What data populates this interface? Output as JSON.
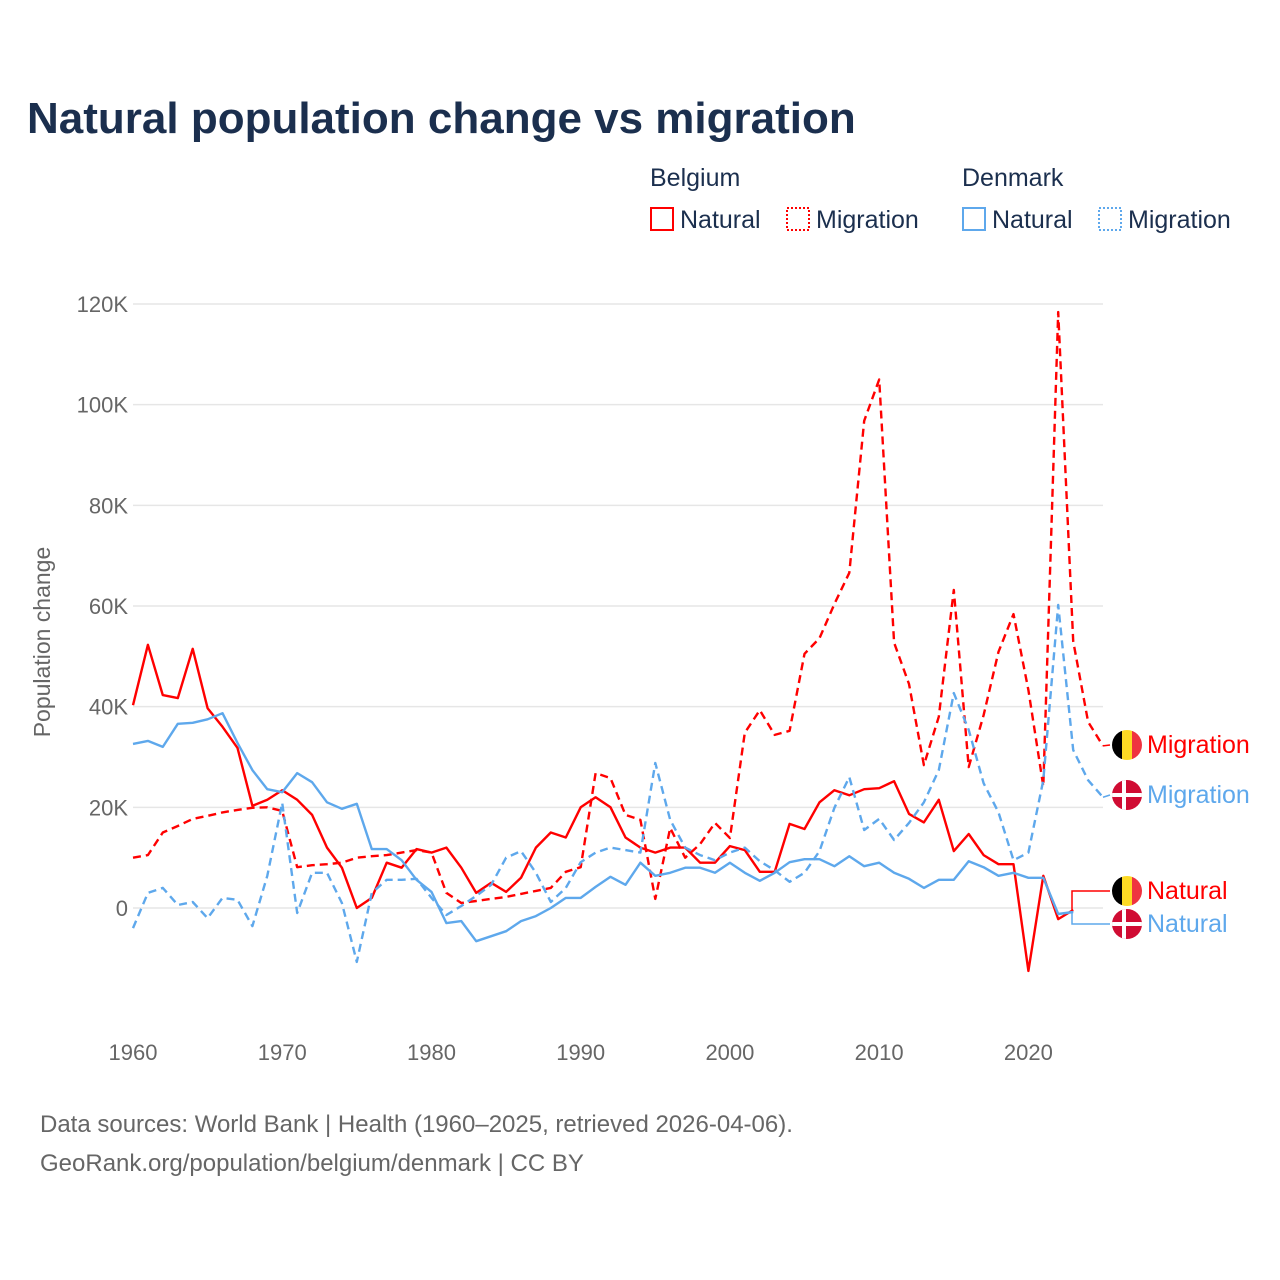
{
  "chart_data": {
    "type": "line",
    "title": "Natural population change vs migration",
    "xlabel": "",
    "ylabel": "Population change",
    "xlim": [
      1960,
      2025
    ],
    "ylim": [
      -20000,
      120000
    ],
    "grid": true,
    "x_ticks": [
      "1960",
      "1970",
      "1980",
      "1990",
      "2000",
      "2010",
      "2020"
    ],
    "y_ticks": [
      {
        "v": 0,
        "label": "0"
      },
      {
        "v": 20000,
        "label": "20K"
      },
      {
        "v": 40000,
        "label": "40K"
      },
      {
        "v": 60000,
        "label": "60K"
      },
      {
        "v": 80000,
        "label": "80K"
      },
      {
        "v": 100000,
        "label": "100K"
      },
      {
        "v": 120000,
        "label": "120K"
      }
    ],
    "legend": {
      "placement": "top-right",
      "groups": [
        {
          "name": "Belgium",
          "items": [
            "Natural",
            "Migration"
          ]
        },
        {
          "name": "Denmark",
          "items": [
            "Natural",
            "Migration"
          ]
        }
      ]
    },
    "start_year": 1960,
    "series": [
      {
        "country": "Belgium",
        "name": "Natural",
        "color": "#ff0000",
        "dash": false,
        "end_label": "Natural",
        "flag": "belgium",
        "values": [
          40.3,
          52.3,
          42.3,
          41.7,
          51.5,
          39.7,
          36,
          31.8,
          20.3,
          21.5,
          23.4,
          21.5,
          18.5,
          12,
          8,
          0,
          2,
          9,
          8,
          11.7,
          11,
          12,
          8,
          3,
          5,
          3.2,
          6,
          12,
          15,
          14,
          20,
          22,
          20,
          14,
          12,
          11,
          12,
          12,
          9,
          9,
          12.3,
          11.5,
          7.2,
          7.2,
          16.7,
          15.7,
          21,
          23.4,
          22.4,
          23.6,
          23.8,
          25.2,
          18.7,
          17,
          21.5,
          11.3,
          14.7,
          10.5,
          8.7,
          8.7,
          -12.5,
          6.4,
          -2.2,
          -0.4
        ]
      },
      {
        "country": "Belgium",
        "name": "Migration",
        "color": "#ff0000",
        "dash": true,
        "end_label": "Migration",
        "flag": "belgium",
        "values": [
          10,
          10.5,
          15,
          16.3,
          17.7,
          18.3,
          19,
          19.5,
          19.9,
          20,
          19.3,
          8.1,
          8.5,
          8.7,
          9,
          10,
          10.3,
          10.5,
          11,
          11.5,
          11,
          3,
          1,
          1.4,
          1.8,
          2.2,
          2.8,
          3.4,
          4,
          7.2,
          8.1,
          26.8,
          25.8,
          18.5,
          17.5,
          1.8,
          15.9,
          10,
          12.7,
          16.9,
          13.9,
          34.8,
          39.3,
          34.4,
          35.2,
          50.5,
          53.6,
          60.4,
          66.6,
          96.8,
          105,
          52.7,
          44.5,
          28.4,
          38,
          63.2,
          28,
          38.3,
          50.9,
          58.4,
          43.3,
          24.2,
          118.4,
          53,
          37,
          32.2
        ]
      },
      {
        "country": "Denmark",
        "name": "Natural",
        "color": "#5ea8ec",
        "dash": false,
        "end_label": "Natural",
        "flag": "denmark",
        "values": [
          32.6,
          33.2,
          32,
          36.6,
          36.8,
          37.5,
          38.7,
          32.8,
          27.4,
          23.6,
          23,
          26.8,
          25,
          21,
          19.7,
          20.7,
          11.7,
          11.7,
          9.5,
          5.6,
          3.2,
          -3,
          -2.6,
          -6.6,
          -5.6,
          -4.6,
          -2.6,
          -1.6,
          0,
          2,
          2,
          4.2,
          6.2,
          4.6,
          9,
          6.4,
          7,
          8,
          8,
          7,
          9,
          7,
          5.4,
          7,
          9.1,
          9.7,
          9.7,
          8.3,
          10.3,
          8.3,
          9,
          7,
          5.8,
          4,
          5.6,
          5.6,
          9.3,
          8.1,
          6.4,
          7,
          6,
          6,
          -1.2,
          -0.8
        ]
      },
      {
        "country": "Denmark",
        "name": "Migration",
        "color": "#5ea8ec",
        "dash": true,
        "end_label": "Migration",
        "flag": "denmark",
        "values": [
          -4,
          3,
          4,
          0.6,
          1.2,
          -2,
          2,
          1.6,
          -3.6,
          6.4,
          20.9,
          -1,
          7,
          7,
          1,
          -10.7,
          3,
          5.6,
          5.6,
          5.8,
          2,
          -1.4,
          0.4,
          2.4,
          4.6,
          10,
          11.3,
          7,
          1.2,
          4,
          9.1,
          11,
          12,
          11.5,
          11,
          28.8,
          17.5,
          12,
          10.5,
          9.5,
          11,
          12,
          9.3,
          7.5,
          5.2,
          7,
          11.3,
          19.9,
          26,
          15.5,
          17.7,
          13.5,
          16.9,
          21,
          27.4,
          42.7,
          35.4,
          24.8,
          19,
          9.5,
          11,
          25.4,
          60.2,
          31.4,
          25.4,
          22
        ]
      }
    ],
    "value_unit": "thousands",
    "source_lines": [
      "Data sources: World Bank | Health (1960–2025, retrieved 2026-04-06).",
      "GeoRank.org/population/belgium/denmark | CC BY"
    ]
  }
}
